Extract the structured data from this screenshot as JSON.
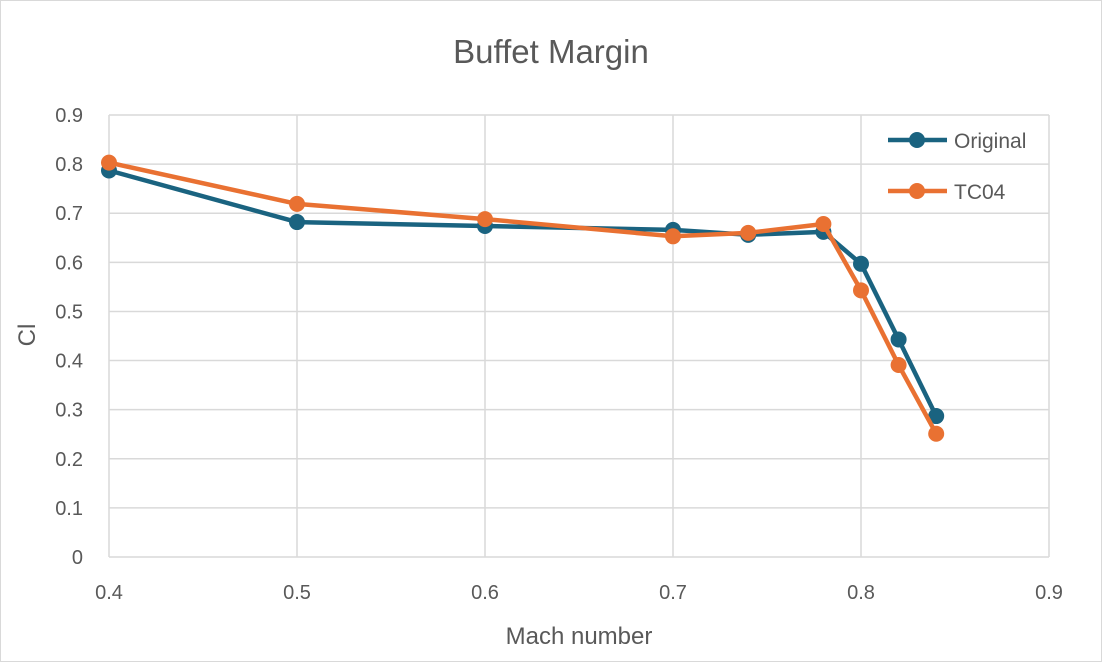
{
  "chart_data": {
    "type": "line",
    "title": "Buffet Margin",
    "xlabel": "Mach number",
    "ylabel": "Cl",
    "xlim": [
      0.4,
      0.9
    ],
    "ylim": [
      0,
      0.9
    ],
    "xticks": [
      "0.4",
      "0.5",
      "0.6",
      "0.7",
      "0.8",
      "0.9"
    ],
    "yticks": [
      "0",
      "0.1",
      "0.2",
      "0.3",
      "0.4",
      "0.5",
      "0.6",
      "0.7",
      "0.8",
      "0.9"
    ],
    "grid": true,
    "legend_position": "top-right",
    "series": [
      {
        "name": "Original",
        "color": "#1a6380",
        "x": [
          0.4,
          0.5,
          0.6,
          0.7,
          0.74,
          0.78,
          0.8,
          0.82,
          0.84
        ],
        "y": [
          0.787,
          0.682,
          0.674,
          0.666,
          0.656,
          0.662,
          0.597,
          0.443,
          0.287
        ]
      },
      {
        "name": "TC04",
        "color": "#e97132",
        "x": [
          0.4,
          0.5,
          0.6,
          0.7,
          0.74,
          0.78,
          0.8,
          0.82,
          0.84
        ],
        "y": [
          0.803,
          0.719,
          0.688,
          0.653,
          0.66,
          0.678,
          0.543,
          0.391,
          0.251
        ]
      }
    ]
  }
}
